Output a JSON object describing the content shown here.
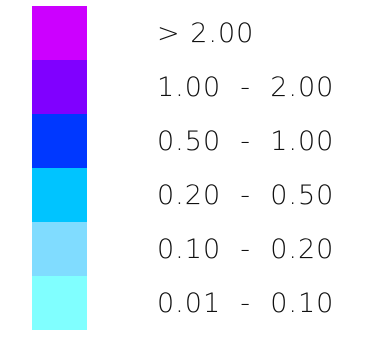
{
  "legend": {
    "items": [
      {
        "label": "> 2.00",
        "color": "#CC00FF"
      },
      {
        "label": "1.00  -  2.00",
        "color": "#8000FF"
      },
      {
        "label": "0.50  -  1.00",
        "color": "#0038FF"
      },
      {
        "label": "0.20  -  0.50",
        "color": "#00C4FF"
      },
      {
        "label": "0.10  -  0.20",
        "color": "#80DCFF"
      },
      {
        "label": "0.01  -  0.10",
        "color": "#80FFFF"
      }
    ]
  }
}
